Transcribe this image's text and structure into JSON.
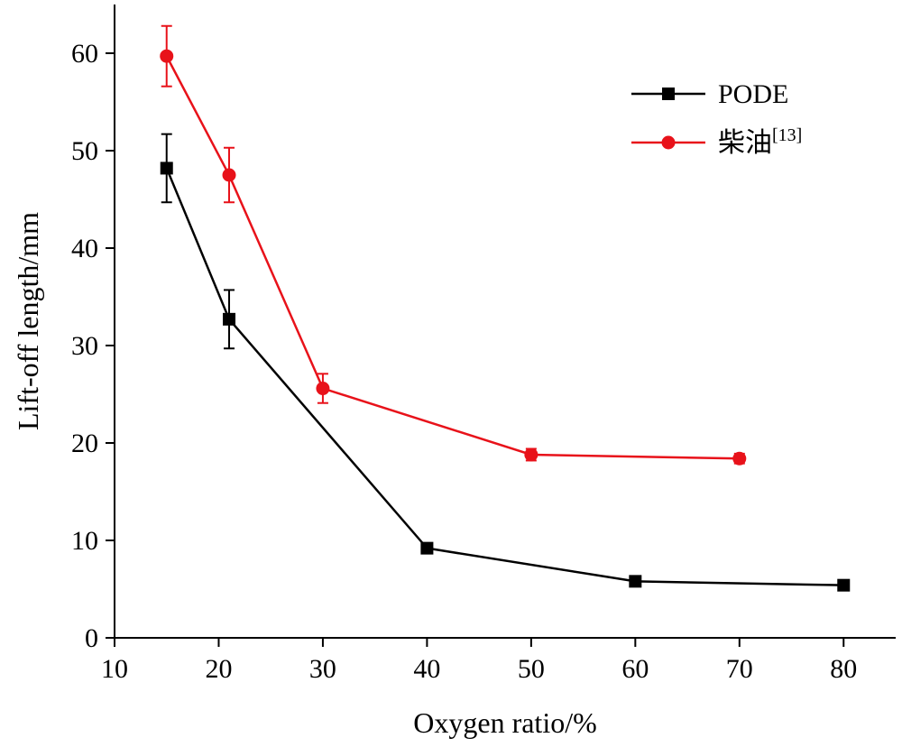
{
  "chart_data": {
    "type": "line",
    "title": "",
    "xlabel": "Oxygen ratio/%",
    "ylabel": "Lift-off length/mm",
    "xlim": [
      10,
      85
    ],
    "ylim": [
      0,
      65
    ],
    "xticks": [
      10,
      20,
      30,
      40,
      50,
      60,
      70,
      80
    ],
    "yticks": [
      0,
      10,
      20,
      30,
      40,
      50,
      60
    ],
    "grid": false,
    "legend_position": "top-right",
    "series": [
      {
        "name": "PODE",
        "color": "#000000",
        "marker": "square",
        "x": [
          15,
          21,
          40,
          60,
          80
        ],
        "y": [
          48.2,
          32.7,
          9.2,
          5.8,
          5.4
        ],
        "error": [
          3.5,
          3.0,
          0.5,
          0.3,
          0.3
        ]
      },
      {
        "name": "柴油",
        "name_superscript": "[13]",
        "color": "#e8121a",
        "marker": "circle",
        "x": [
          15,
          21,
          30,
          50,
          70
        ],
        "y": [
          59.7,
          47.5,
          25.6,
          18.8,
          18.4
        ],
        "error": [
          3.1,
          2.8,
          1.5,
          0.6,
          0.5
        ]
      }
    ]
  }
}
